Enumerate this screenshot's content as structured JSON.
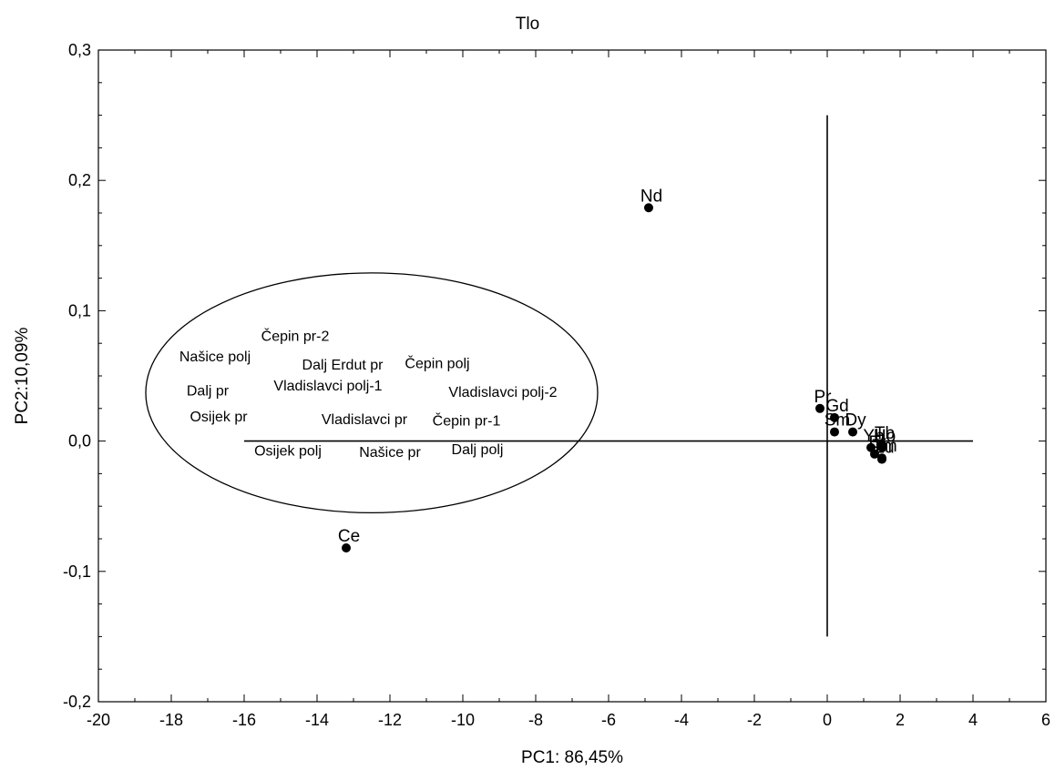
{
  "chart_data": {
    "type": "scatter",
    "title": "Tlo",
    "xlabel": "PC1: 86,45%",
    "ylabel": "PC2:10,09%",
    "xlim": [
      -20,
      6
    ],
    "ylim": [
      -0.2,
      0.3
    ],
    "x_ticks": [
      "-20",
      "-18",
      "-16",
      "-14",
      "-12",
      "-10",
      "-8",
      "-6",
      "-4",
      "-2",
      "0",
      "2",
      "4",
      "6"
    ],
    "y_ticks": [
      "-0,2",
      "-0,1",
      "0,0",
      "0,1",
      "0,2",
      "0,3"
    ],
    "grid": false,
    "loadings": [
      {
        "label": "Nd",
        "x": -4.9,
        "y": 0.179
      },
      {
        "label": "Ce",
        "x": -13.2,
        "y": -0.082
      },
      {
        "label": "Pr",
        "x": -0.2,
        "y": 0.025
      },
      {
        "label": "Gd",
        "x": 0.2,
        "y": 0.018
      },
      {
        "label": "Sm",
        "x": 0.2,
        "y": 0.007
      },
      {
        "label": "Dy",
        "x": 0.7,
        "y": 0.007
      },
      {
        "label": "Yb",
        "x": 1.2,
        "y": -0.005
      },
      {
        "label": "Ho",
        "x": 1.5,
        "y": -0.005
      },
      {
        "label": "Er",
        "x": 1.3,
        "y": -0.01
      },
      {
        "label": "Tm",
        "x": 1.5,
        "y": -0.013
      },
      {
        "label": "Lu",
        "x": 1.5,
        "y": -0.014
      },
      {
        "label": "Tb",
        "x": 1.5,
        "y": -0.003
      }
    ],
    "samples": [
      {
        "label": "Čepin pr-2",
        "x": -14.6,
        "y": 0.077
      },
      {
        "label": "Našice polj",
        "x": -16.8,
        "y": 0.061
      },
      {
        "label": "Dalj Erdut pr",
        "x": -13.3,
        "y": 0.055
      },
      {
        "label": "Čepin polj",
        "x": -10.7,
        "y": 0.056
      },
      {
        "label": "Dalj pr",
        "x": -17.0,
        "y": 0.035
      },
      {
        "label": "Vladislavci polj-1",
        "x": -13.7,
        "y": 0.039
      },
      {
        "label": "Vladislavci polj-2",
        "x": -8.9,
        "y": 0.034
      },
      {
        "label": "Osijek pr",
        "x": -16.7,
        "y": 0.015
      },
      {
        "label": "Vladislavci pr",
        "x": -12.7,
        "y": 0.013
      },
      {
        "label": "Čepin pr-1",
        "x": -9.9,
        "y": 0.012
      },
      {
        "label": "Osijek polj",
        "x": -14.8,
        "y": -0.011
      },
      {
        "label": "Našice pr",
        "x": -12.0,
        "y": -0.012
      },
      {
        "label": "Dalj polj",
        "x": -9.6,
        "y": -0.01
      }
    ],
    "reference_lines": [
      {
        "orientation": "horizontal",
        "y": 0.0,
        "x_from": -16,
        "x_to": 4
      },
      {
        "orientation": "vertical",
        "x": 0.0,
        "y_from": -0.15,
        "y_to": 0.25
      }
    ],
    "ellipse": {
      "center_x": -12.5,
      "center_y": 0.037,
      "radius_x": 6.2,
      "radius_y": 0.092
    }
  }
}
